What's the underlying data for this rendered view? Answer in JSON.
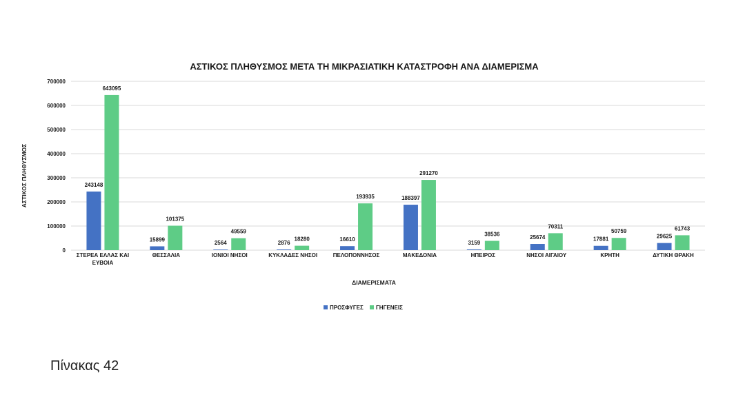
{
  "page": {
    "caption": "Πίνακας 42"
  },
  "colors": {
    "refugees": "#4472C4",
    "natives": "#5ECC86",
    "grid": "#D9D9D9",
    "text": "#1a1a1a"
  },
  "chart_data": {
    "type": "bar",
    "title": "ΑΣΤΙΚΟΣ ΠΛΗΘΥΣΜΟΣ ΜΕΤΑ ΤΗ ΜΙΚΡΑΣΙΑΤΙΚΗ ΚΑΤΑΣΤΡΟΦΗ ΑΝΑ ΔΙΑΜΕΡΙΣΜΑ",
    "xlabel": "ΔΙΑΜΕΡΙΣΜΑΤΑ",
    "ylabel": "ΑΣΤΙΚΟΣ ΠΛΗΘΥΣΜΟΣ",
    "ylim": [
      0,
      700000
    ],
    "yticks": [
      0,
      100000,
      200000,
      300000,
      400000,
      500000,
      600000,
      700000
    ],
    "grid": true,
    "legend_position": "bottom",
    "categories": [
      [
        "ΣΤΕΡΕΑ ΕΛΛΑΣ ΚΑΙ",
        "ΕΥΒΟΙΑ"
      ],
      [
        "ΘΕΣΣΑΛΙΑ"
      ],
      [
        "ΙΟΝΙΟΙ ΝΗΣΟΙ"
      ],
      [
        "ΚΥΚΛΑΔΕΣ ΝΗΣΟΙ"
      ],
      [
        "ΠΕΛΟΠΟΝΝΗΣΟΣ"
      ],
      [
        "ΜΑΚΕΔΟΝΙΑ"
      ],
      [
        "ΗΠΕΙΡΟΣ"
      ],
      [
        "ΝΗΣΟΙ ΑΙΓΑΙΟΥ"
      ],
      [
        "ΚΡΗΤΗ"
      ],
      [
        "ΔΥΤΙΚΗ ΘΡΑΚΗ"
      ]
    ],
    "series": [
      {
        "name": "ΠΡΟΣΦΥΓΕΣ",
        "color_key": "refugees",
        "values": [
          243148,
          15899,
          2564,
          2876,
          16610,
          188397,
          3159,
          25674,
          17881,
          29625
        ]
      },
      {
        "name": "ΓΗΓΕΝΕΙΣ",
        "color_key": "natives",
        "values": [
          643095,
          101375,
          49559,
          18280,
          193935,
          291270,
          38536,
          70311,
          50759,
          61743
        ]
      }
    ]
  }
}
